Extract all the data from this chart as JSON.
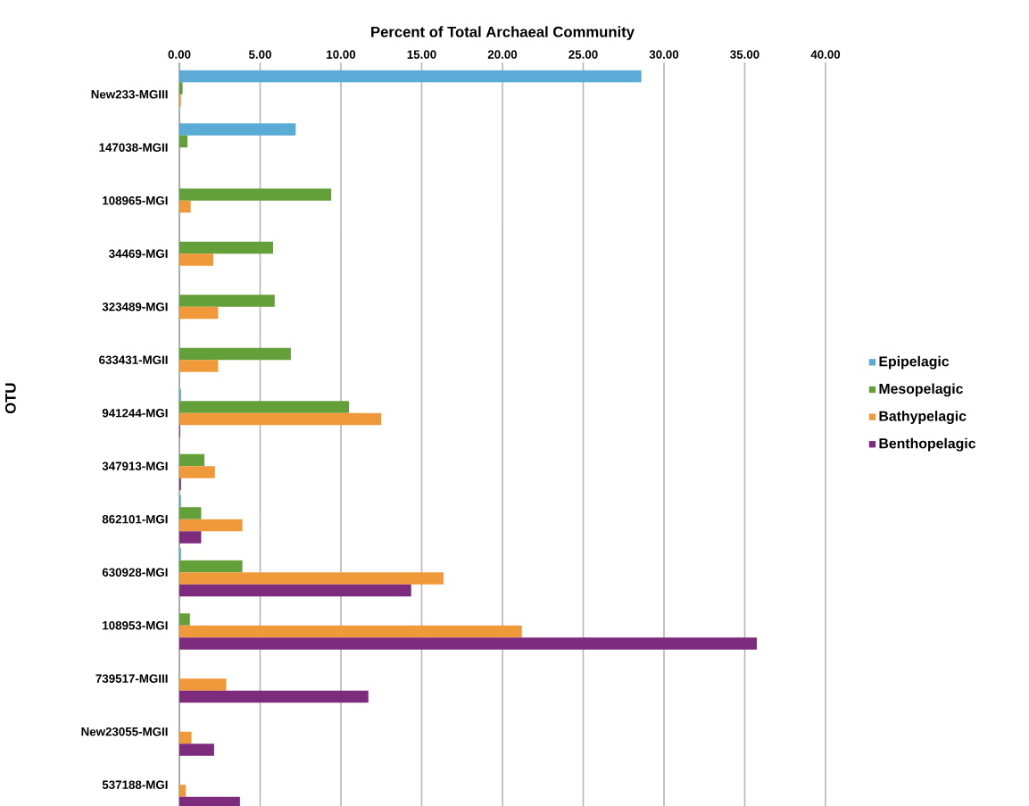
{
  "chart_data": {
    "type": "bar",
    "orientation": "horizontal",
    "xlabel": "Percent of Total Archaeal Community",
    "ylabel": "OTU",
    "categories": [
      "New233-MGIII",
      "147038-MGII",
      "108965-MGI",
      "34469-MGI",
      "323489-MGI",
      "633431-MGII",
      "941244-MGI",
      "347913-MGI",
      "862101-MGI",
      "630928-MGI",
      "108953-MGI",
      "739517-MGIII",
      "New23055-MGII",
      "537188-MGI"
    ],
    "series": [
      {
        "name": "Epipelagic",
        "color": "#5aabd6",
        "values": [
          28.6,
          7.2,
          0,
          0,
          0,
          0,
          0.1,
          0,
          0.1,
          0.1,
          0,
          0,
          0,
          0
        ]
      },
      {
        "name": "Mesopelagic",
        "color": "#63a03a",
        "values": [
          0.2,
          0.5,
          9.4,
          5.8,
          5.9,
          6.9,
          10.5,
          1.55,
          1.35,
          3.9,
          0.65,
          0,
          0,
          0
        ]
      },
      {
        "name": "Bathypelagic",
        "color": "#f0993a",
        "values": [
          0.1,
          0,
          0.7,
          2.1,
          2.4,
          2.4,
          12.5,
          2.2,
          3.9,
          16.35,
          21.2,
          2.9,
          0.75,
          0.4
        ]
      },
      {
        "name": "Benthopelagic",
        "color": "#7d2b7c",
        "values": [
          0,
          0,
          0,
          0,
          0,
          0,
          0.05,
          0.1,
          1.35,
          14.35,
          35.75,
          11.7,
          2.15,
          3.75
        ]
      }
    ],
    "xlim": [
      0,
      40
    ],
    "xticks": [
      {
        "value": 0,
        "label": "0.00"
      },
      {
        "value": 5,
        "label": "5.00"
      },
      {
        "value": 10,
        "label": "10.00"
      },
      {
        "value": 15,
        "label": "15.00"
      },
      {
        "value": 20,
        "label": "20.00"
      },
      {
        "value": 25,
        "label": "25.00"
      },
      {
        "value": 30,
        "label": "30.00"
      },
      {
        "value": 35,
        "label": "35.00"
      },
      {
        "value": 40,
        "label": "40.00"
      }
    ],
    "grid": "x",
    "legend": "right"
  }
}
